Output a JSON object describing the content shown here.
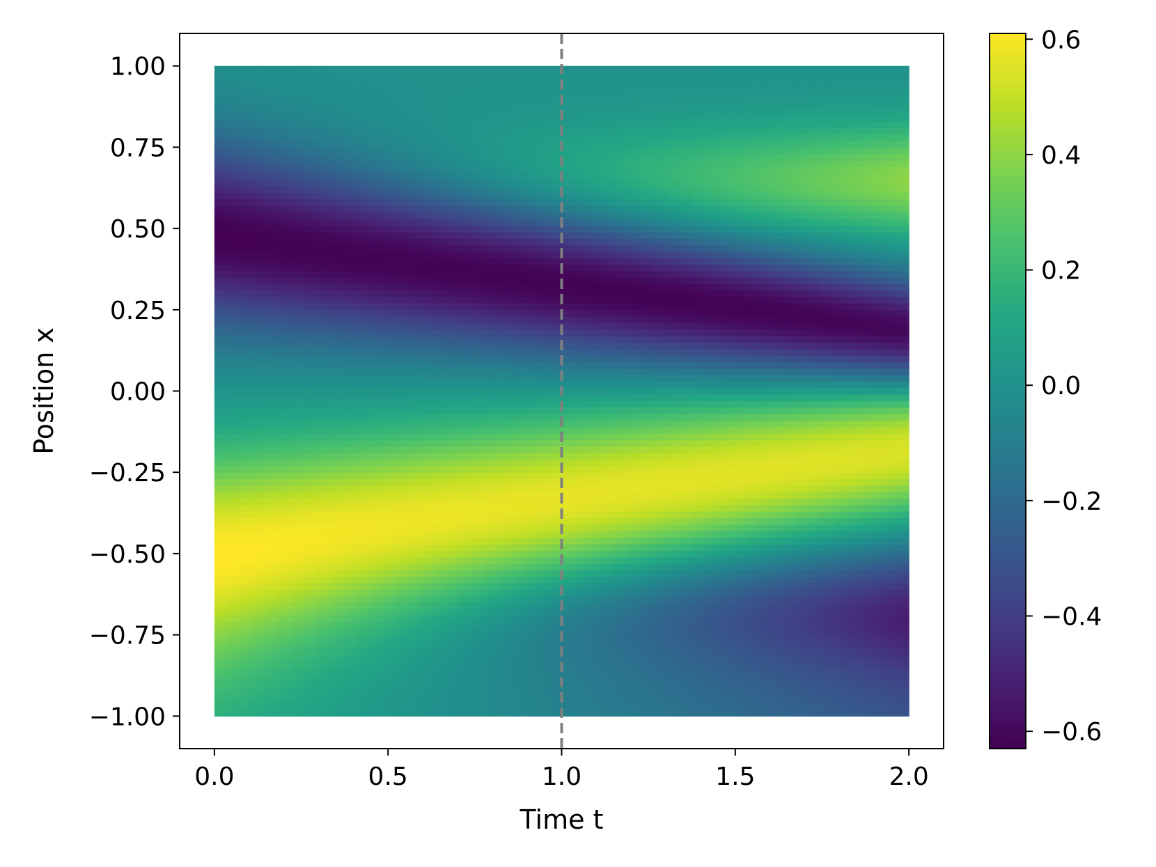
{
  "chart_data": {
    "type": "heatmap",
    "title": "",
    "xlabel": "Time t",
    "ylabel": "Position x",
    "xlim": [
      -0.1,
      2.1
    ],
    "ylim": [
      -1.1,
      1.1
    ],
    "data_x_range": [
      0.0,
      2.0
    ],
    "data_y_range": [
      -1.0,
      1.0
    ],
    "xticks": [
      0.0,
      0.5,
      1.0,
      1.5,
      2.0
    ],
    "xtick_labels": [
      "0.0",
      "0.5",
      "1.0",
      "1.5",
      "2.0"
    ],
    "yticks": [
      1.0,
      0.75,
      0.5,
      0.25,
      0.0,
      -0.25,
      -0.5,
      -0.75,
      -1.0
    ],
    "ytick_labels": [
      "1.00",
      "0.75",
      "0.50",
      "0.25",
      "0.00",
      "−0.25",
      "−0.50",
      "−0.75",
      "−1.00"
    ],
    "colormap": "viridis",
    "color_range": [
      -0.63,
      0.61
    ],
    "colorbar_ticks": [
      0.6,
      0.4,
      0.2,
      0.0,
      -0.2,
      -0.4,
      -0.6
    ],
    "colorbar_tick_labels": [
      "0.6",
      "0.4",
      "0.2",
      "0.0",
      "−0.2",
      "−0.4",
      "−0.6"
    ],
    "reference_line": {
      "axis": "x",
      "value": 1.0,
      "style": "dashed",
      "color": "#808080"
    },
    "grid": false,
    "sample_points": [
      {
        "t": 0.0,
        "x": 0.5,
        "value": -0.63
      },
      {
        "t": 0.0,
        "x": -0.5,
        "value": 0.61
      },
      {
        "t": 2.0,
        "x": 0.18,
        "value": -0.6
      },
      {
        "t": 2.0,
        "x": -0.18,
        "value": 0.55
      },
      {
        "t": 2.0,
        "x": 0.65,
        "value": 0.38
      },
      {
        "t": 2.0,
        "x": -0.68,
        "value": -0.48
      }
    ]
  }
}
